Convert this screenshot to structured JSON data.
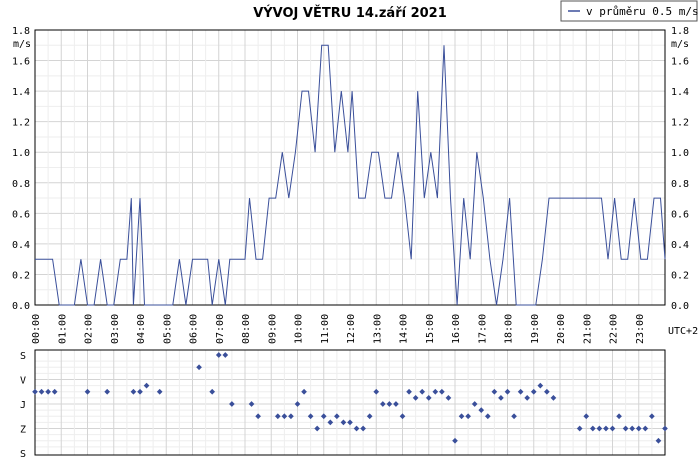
{
  "chart_data": [
    {
      "type": "line",
      "title": "VÝVOJ VĚTRU  14.září 2021",
      "ylabel": "m/s",
      "timezone_label": "UTC+2",
      "legend": {
        "label": "v průměru 0.5 m/s",
        "placement": "top-right"
      },
      "ylim": [
        0,
        1.8
      ],
      "y_ticks": [
        "0.0",
        "0.2",
        "0.4",
        "0.6",
        "0.8",
        "1.0",
        "1.2",
        "1.4",
        "1.6",
        "1.8"
      ],
      "x_ticks": [
        "00:00",
        "01:00",
        "02:00",
        "03:00",
        "04:00",
        "05:00",
        "06:00",
        "07:00",
        "08:00",
        "09:00",
        "10:00",
        "11:00",
        "12:00",
        "13:00",
        "14:00",
        "15:00",
        "16:00",
        "17:00",
        "18:00",
        "19:00",
        "20:00",
        "21:00",
        "22:00",
        "23:00"
      ],
      "xlim_hours": [
        0,
        24
      ],
      "grid": true,
      "color": "#3a4f9a",
      "series": [
        {
          "x": [
            0,
            0.25,
            0.5,
            0.67,
            0.92,
            1,
            1.25,
            1.5,
            1.75,
            2,
            2.25,
            2.5,
            2.75,
            3,
            3.25,
            3.5,
            3.67,
            3.75,
            4,
            4.17,
            4.42,
            4.58,
            4.75,
            5,
            5.25,
            5.5,
            5.75,
            6,
            6.17,
            6.42,
            6.58,
            6.75,
            7,
            7.25,
            7.42,
            7.67,
            7.83,
            8,
            8.17,
            8.42,
            8.67,
            8.92,
            9.17,
            9.42,
            9.67,
            9.92,
            10.17,
            10.42,
            10.67,
            10.92,
            11.17,
            11.42,
            11.67,
            11.92,
            12.08,
            12.33,
            12.58,
            12.83,
            13.08,
            13.33,
            13.58,
            13.83,
            14.08,
            14.33,
            14.58,
            14.83,
            15.08,
            15.33,
            15.58,
            15.83,
            16.08,
            16.33,
            16.58,
            16.83,
            17.08,
            17.33,
            17.58,
            17.83,
            18.08,
            18.33,
            18.58,
            18.83,
            19.08,
            19.33,
            19.58,
            19.83,
            20.08,
            20.33,
            20.58,
            20.83,
            21.08,
            21.33,
            21.58,
            21.83,
            22.08,
            22.33,
            22.58,
            22.83,
            23.08,
            23.33,
            23.58,
            23.83,
            24
          ],
          "y": [
            0.3,
            0.3,
            0.3,
            0.3,
            0,
            0,
            0,
            0,
            0.3,
            0,
            0,
            0.3,
            0,
            0,
            0.3,
            0.3,
            0.7,
            0,
            0.7,
            0,
            0,
            0,
            0,
            0,
            0,
            0.3,
            0,
            0.3,
            0.3,
            0.3,
            0.3,
            0,
            0.3,
            0,
            0.3,
            0.3,
            0.3,
            0.3,
            0.7,
            0.3,
            0.3,
            0.7,
            0.7,
            1.0,
            0.7,
            1.0,
            1.4,
            1.4,
            1.0,
            1.7,
            1.7,
            1.0,
            1.4,
            1.0,
            1.4,
            0.7,
            0.7,
            1.0,
            1.0,
            0.7,
            0.7,
            1.0,
            0.7,
            0.3,
            1.4,
            0.7,
            1.0,
            0.7,
            1.7,
            0.7,
            0,
            0.7,
            0.3,
            1.0,
            0.7,
            0.3,
            0,
            0.3,
            0.7,
            0,
            0,
            0,
            0,
            0.3,
            0.7,
            0.7,
            0.7,
            0.7,
            0.7,
            0.7,
            0.7,
            0.7,
            0.7,
            0.3,
            0.7,
            0.3,
            0.3,
            0.7,
            0.3,
            0.3,
            0.7,
            0.7,
            0.3
          ]
        }
      ]
    },
    {
      "type": "scatter",
      "ylabel": "",
      "y_categories": [
        "S",
        "V",
        "J",
        "Z",
        "S"
      ],
      "xlim_hours": [
        0,
        24
      ],
      "grid": true,
      "color": "#3a4f9a",
      "series": [
        {
          "x": [
            0,
            0.25,
            0.5,
            0.75,
            2,
            2.75,
            3.75,
            4,
            4.25,
            4.75,
            6.25,
            6.75,
            7,
            7.25,
            7.5,
            8.25,
            8.5,
            9.25,
            9.5,
            9.75,
            10,
            10.25,
            10.5,
            10.75,
            11,
            11.25,
            11.5,
            11.75,
            12,
            12.25,
            12.5,
            12.75,
            13,
            13.25,
            13.5,
            13.75,
            14,
            14.25,
            14.5,
            14.75,
            15,
            15.25,
            15.5,
            15.75,
            16,
            16.25,
            16.5,
            16.75,
            17,
            17.25,
            17.5,
            17.75,
            18,
            18.25,
            18.5,
            18.75,
            19,
            19.25,
            19.5,
            19.75,
            20.75,
            21,
            21.25,
            21.5,
            21.75,
            22,
            22.25,
            22.5,
            22.75,
            23,
            23.25,
            23.5,
            23.75,
            24
          ],
          "y": [
            1.5,
            1.5,
            1.5,
            1.5,
            1.5,
            1.5,
            1.5,
            1.5,
            1.25,
            1.5,
            0.5,
            1.5,
            0,
            0,
            2,
            2,
            2.5,
            2.5,
            2.5,
            2.5,
            2,
            1.5,
            2.5,
            3,
            2.5,
            2.75,
            2.5,
            2.75,
            2.75,
            3,
            3,
            2.5,
            1.5,
            2,
            2,
            2,
            2.5,
            1.5,
            1.75,
            1.5,
            1.75,
            1.5,
            1.5,
            1.75,
            3.5,
            2.5,
            2.5,
            2,
            2.25,
            2.5,
            1.5,
            1.75,
            1.5,
            2.5,
            1.5,
            1.75,
            1.5,
            1.25,
            1.5,
            1.75,
            3,
            2.5,
            3,
            3,
            3,
            3,
            2.5,
            3,
            3,
            3,
            3,
            2.5,
            3.5,
            3
          ]
        }
      ]
    }
  ]
}
